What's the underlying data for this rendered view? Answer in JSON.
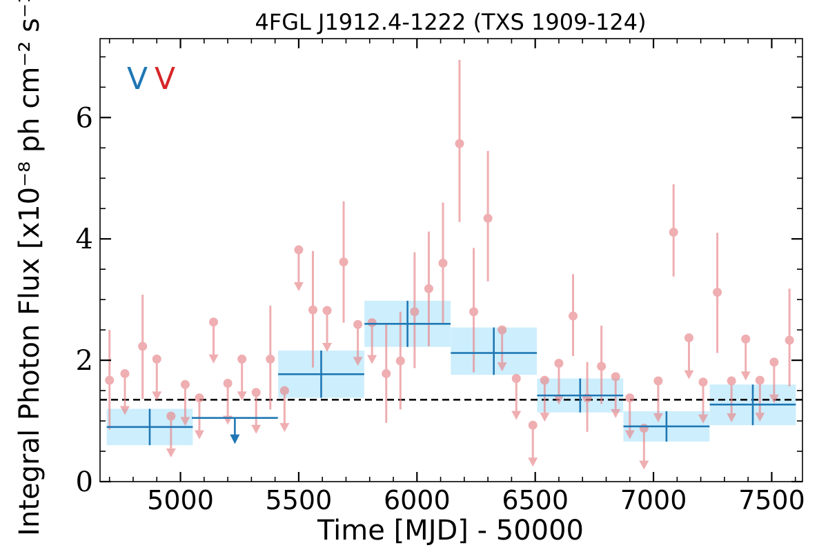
{
  "chart_data": {
    "type": "scatter",
    "title": "4FGL J1912.4-1222 (TXS 1909-124)",
    "xlabel": "Time [MJD] - 50000",
    "ylabel": "Integral Photon Flux [x10⁻⁸ ph cm⁻² s⁻¹]",
    "xlim": [
      4660,
      7630
    ],
    "ylim": [
      0,
      7.3
    ],
    "xticks": [
      5000,
      5500,
      6000,
      6500,
      7000,
      7500
    ],
    "yticks": [
      0,
      2,
      4,
      6
    ],
    "xtick_labels": [
      "5000",
      "5500",
      "6000",
      "6500",
      "7000",
      "7500"
    ],
    "ytick_labels": [
      "0",
      "2",
      "4",
      "6"
    ],
    "reference_line": {
      "y": 1.35,
      "style": "dashed",
      "color": "#000000"
    },
    "legend": {
      "placement": "top-left",
      "entries": [
        {
          "marker": "V",
          "color": "#1f77b4"
        },
        {
          "marker": "V",
          "color": "#d62728"
        }
      ]
    },
    "colors": {
      "coarse": "#1f77b4",
      "coarse_band": "#cdeefc",
      "fine": "#e8898d"
    },
    "series": [
      {
        "color": "#1f77b4",
        "detections": [
          {
            "x": 4870,
            "xerr": 182,
            "y": 0.9,
            "ylo": 0.6,
            "yhi": 1.2
          },
          {
            "x": 5595,
            "xerr": 182,
            "y": 1.77,
            "ylo": 1.38,
            "yhi": 2.16
          },
          {
            "x": 5960,
            "xerr": 182,
            "y": 2.6,
            "ylo": 2.22,
            "yhi": 2.98
          },
          {
            "x": 6325,
            "xerr": 182,
            "y": 2.12,
            "ylo": 1.76,
            "yhi": 2.54
          },
          {
            "x": 6690,
            "xerr": 182,
            "y": 1.42,
            "ylo": 1.14,
            "yhi": 1.7
          },
          {
            "x": 7055,
            "xerr": 182,
            "y": 0.91,
            "ylo": 0.66,
            "yhi": 1.16
          },
          {
            "x": 7420,
            "xerr": 182,
            "y": 1.27,
            "ylo": 0.93,
            "yhi": 1.6
          }
        ],
        "upper_limits": [
          {
            "x": 5230,
            "xerr": 182,
            "y": 1.05
          }
        ]
      },
      {
        "color": "#e8898d",
        "detections": [
          {
            "x": 4700,
            "y": 1.67,
            "ylo": 0.86,
            "yhi": 2.5
          },
          {
            "x": 4840,
            "y": 2.23,
            "ylo": 1.36,
            "yhi": 3.08
          },
          {
            "x": 5380,
            "y": 2.02,
            "ylo": 1.19,
            "yhi": 2.9
          },
          {
            "x": 5560,
            "y": 2.83,
            "ylo": 1.88,
            "yhi": 3.8
          },
          {
            "x": 5690,
            "y": 3.62,
            "ylo": 2.62,
            "yhi": 4.62
          },
          {
            "x": 5870,
            "y": 1.78,
            "ylo": 0.97,
            "yhi": 2.6
          },
          {
            "x": 5930,
            "y": 1.99,
            "ylo": 1.19,
            "yhi": 2.8
          },
          {
            "x": 5990,
            "y": 2.8,
            "ylo": 1.87,
            "yhi": 3.78
          },
          {
            "x": 6050,
            "y": 3.18,
            "ylo": 2.23,
            "yhi": 4.12
          },
          {
            "x": 6110,
            "y": 3.6,
            "ylo": 2.6,
            "yhi": 4.6
          },
          {
            "x": 6180,
            "y": 5.57,
            "ylo": 4.28,
            "yhi": 6.95
          },
          {
            "x": 6240,
            "y": 2.8,
            "ylo": 1.8,
            "yhi": 3.85
          },
          {
            "x": 6300,
            "y": 4.34,
            "ylo": 3.3,
            "yhi": 5.45
          },
          {
            "x": 6660,
            "y": 2.73,
            "ylo": 2.07,
            "yhi": 3.42
          },
          {
            "x": 6720,
            "y": 1.38,
            "ylo": 0.82,
            "yhi": 1.97
          },
          {
            "x": 6780,
            "y": 1.9,
            "ylo": 1.28,
            "yhi": 2.57
          },
          {
            "x": 7085,
            "y": 4.11,
            "ylo": 3.38,
            "yhi": 4.9
          },
          {
            "x": 7270,
            "y": 3.12,
            "ylo": 2.12,
            "yhi": 4.1
          },
          {
            "x": 7575,
            "y": 2.33,
            "ylo": 1.57,
            "yhi": 3.18
          }
        ],
        "upper_limits": [
          {
            "x": 4765,
            "y": 1.78
          },
          {
            "x": 4900,
            "y": 2.02
          },
          {
            "x": 4960,
            "y": 1.08
          },
          {
            "x": 5020,
            "y": 1.6
          },
          {
            "x": 5080,
            "y": 1.38
          },
          {
            "x": 5140,
            "y": 2.63
          },
          {
            "x": 5200,
            "y": 1.62
          },
          {
            "x": 5260,
            "y": 2.02
          },
          {
            "x": 5320,
            "y": 1.47
          },
          {
            "x": 5440,
            "y": 1.5
          },
          {
            "x": 5500,
            "y": 3.82
          },
          {
            "x": 5620,
            "y": 2.82
          },
          {
            "x": 5750,
            "y": 2.59
          },
          {
            "x": 5810,
            "y": 2.62
          },
          {
            "x": 6360,
            "y": 2.5
          },
          {
            "x": 6420,
            "y": 1.7
          },
          {
            "x": 6490,
            "y": 0.93
          },
          {
            "x": 6540,
            "y": 1.67
          },
          {
            "x": 6600,
            "y": 1.95
          },
          {
            "x": 6840,
            "y": 1.73
          },
          {
            "x": 6900,
            "y": 1.38
          },
          {
            "x": 6960,
            "y": 0.88
          },
          {
            "x": 7020,
            "y": 1.66
          },
          {
            "x": 7150,
            "y": 2.37
          },
          {
            "x": 7210,
            "y": 1.64
          },
          {
            "x": 7330,
            "y": 1.66
          },
          {
            "x": 7390,
            "y": 2.35
          },
          {
            "x": 7450,
            "y": 1.67
          },
          {
            "x": 7510,
            "y": 1.97
          }
        ]
      }
    ]
  }
}
